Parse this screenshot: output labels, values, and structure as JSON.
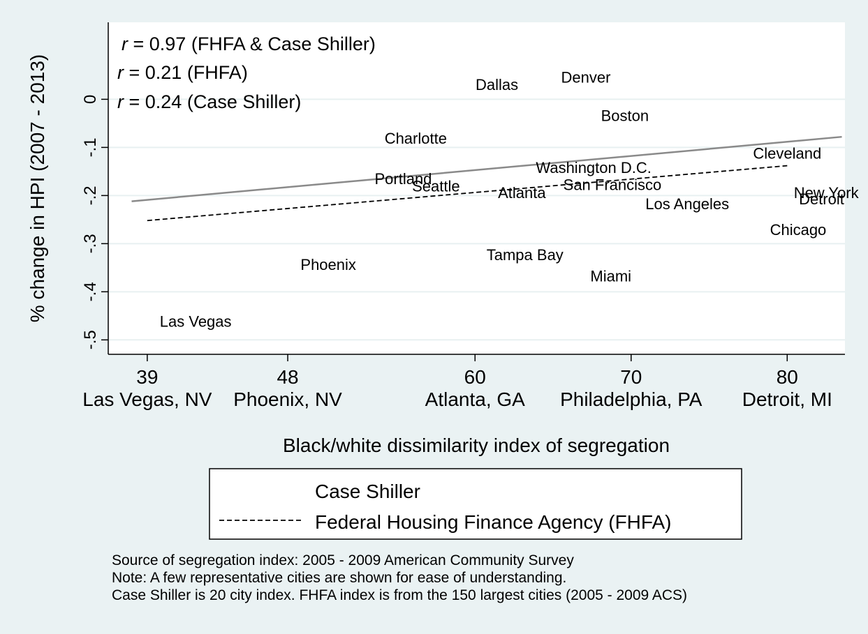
{
  "chart_data": {
    "type": "scatter",
    "xlabel": "Black/white dissimilarity index of segregation",
    "ylabel": "% change in HPI (2007 - 2013)",
    "xlim": [
      36.5,
      83.7
    ],
    "ylim": [
      -0.53,
      0.16
    ],
    "grid": true,
    "x_ticks": [
      {
        "value": 39,
        "label": "39",
        "sublabel": "Las Vegas, NV"
      },
      {
        "value": 48,
        "label": "48",
        "sublabel": "Phoenix, NV"
      },
      {
        "value": 60,
        "label": "60",
        "sublabel": "Atlanta, GA"
      },
      {
        "value": 70,
        "label": "70",
        "sublabel": "Philadelphia, PA"
      },
      {
        "value": 80,
        "label": "80",
        "sublabel": "Detroit, MI"
      }
    ],
    "y_ticks": [
      {
        "value": 0,
        "label": "0"
      },
      {
        "value": -0.1,
        "label": "-.1"
      },
      {
        "value": -0.2,
        "label": "-.2"
      },
      {
        "value": -0.3,
        "label": "-.3"
      },
      {
        "value": -0.4,
        "label": "-.4"
      },
      {
        "value": -0.5,
        "label": "-.5"
      }
    ],
    "points": [
      {
        "label": "Dallas",
        "x": 61.4,
        "y": 0.028
      },
      {
        "label": "Denver",
        "x": 67.1,
        "y": 0.043
      },
      {
        "label": "Boston",
        "x": 69.6,
        "y": -0.037
      },
      {
        "label": "Charlotte",
        "x": 56.2,
        "y": -0.084
      },
      {
        "label": "Cleveland",
        "x": 80.0,
        "y": -0.115
      },
      {
        "label": "Washington D.C.",
        "x": 67.6,
        "y": -0.145
      },
      {
        "label": "Portland",
        "x": 55.4,
        "y": -0.168
      },
      {
        "label": "Seattle",
        "x": 57.5,
        "y": -0.183
      },
      {
        "label": "San Francisco",
        "x": 68.8,
        "y": -0.18
      },
      {
        "label": "Atlanta",
        "x": 63.0,
        "y": -0.197
      },
      {
        "label": "New York",
        "x": 82.5,
        "y": -0.197
      },
      {
        "label": "Detroit",
        "x": 82.2,
        "y": -0.21
      },
      {
        "label": "Los Angeles",
        "x": 73.6,
        "y": -0.22
      },
      {
        "label": "Chicago",
        "x": 80.7,
        "y": -0.274
      },
      {
        "label": "Tampa Bay",
        "x": 63.2,
        "y": -0.326
      },
      {
        "label": "Phoenix",
        "x": 50.6,
        "y": -0.346
      },
      {
        "label": "Miami",
        "x": 68.7,
        "y": -0.37
      },
      {
        "label": "Las Vegas",
        "x": 42.1,
        "y": -0.464
      }
    ],
    "series": [
      {
        "name": "Case Shiller",
        "style": "solid",
        "color": "#8a8a8a",
        "x": [
          38.0,
          83.5
        ],
        "y": [
          -0.212,
          -0.078
        ]
      },
      {
        "name": "Federal Housing Finance Agency (FHFA)",
        "style": "dashed",
        "color": "#000000",
        "x": [
          39.0,
          80.0
        ],
        "y": [
          -0.252,
          -0.138
        ]
      }
    ],
    "annotations": [
      {
        "prefix": "r",
        "text": " = 0.97 (FHFA & Case Shiller)"
      },
      {
        "prefix": "r",
        "text": " = 0.21 (FHFA)"
      },
      {
        "prefix": "r",
        "text": " = 0.24 (Case Shiller)"
      }
    ],
    "legend": {
      "position": "bottom",
      "entries": [
        "Case Shiller",
        "Federal Housing Finance Agency (FHFA)"
      ]
    }
  },
  "notes": [
    "Source of segregation index: 2005 - 2009 American Community Survey",
    "Note: A few representative cities are shown for ease of understanding.",
    "Case Shiller is 20 city index.  FHFA index is from the 150 largest cities (2005 - 2009 ACS)"
  ],
  "colors": {
    "background": "#eaf2f3",
    "plot_area": "#ffffff",
    "grid": "#e8f0f1",
    "case_shiller_line": "#8a8a8a",
    "fhfa_line": "#000000"
  }
}
